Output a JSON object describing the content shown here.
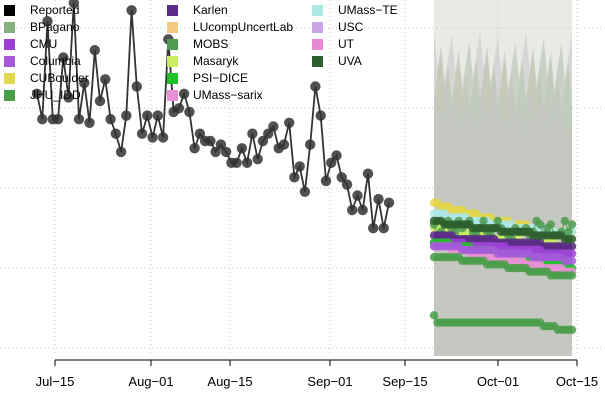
{
  "chart_data": {
    "type": "line",
    "title": "",
    "xlabel": "",
    "ylabel": "",
    "x_ticks": [
      "Jul−15",
      "Aug−01",
      "Aug−15",
      "Sep−01",
      "Sep−15",
      "Oct−01",
      "Oct−15"
    ],
    "grid": true,
    "legend_placement": "top-left",
    "legend": [
      {
        "name": "Reported",
        "color": "#000000"
      },
      {
        "name": "BPagano",
        "color": "#86b07e"
      },
      {
        "name": "CMU",
        "color": "#9c3fd6"
      },
      {
        "name": "Columbia",
        "color": "#a35ad9"
      },
      {
        "name": "CUBoulder",
        "color": "#e3d64a"
      },
      {
        "name": "JHU_IDD",
        "color": "#4a9e4a"
      },
      {
        "name": "Karlen",
        "color": "#5b2a86"
      },
      {
        "name": "LUcompUncertLab",
        "color": "#f2c983"
      },
      {
        "name": "MOBS",
        "color": "#4f9a52"
      },
      {
        "name": "Masaryk",
        "color": "#c9ec62"
      },
      {
        "name": "PSI−DICE",
        "color": "#22c02a"
      },
      {
        "name": "UMass−sarix",
        "color": "#e98fd6"
      },
      {
        "name": "UMass−TE",
        "color": "#aee6e6"
      },
      {
        "name": "USC",
        "color": "#c8a6e6"
      },
      {
        "name": "UT",
        "color": "#e68ad6"
      },
      {
        "name": "UVA",
        "color": "#2e5e2e"
      }
    ],
    "reported_y": [
      0.75,
      0.68,
      0.95,
      0.68,
      0.68,
      0.85,
      0.74,
      1.0,
      0.68,
      0.78,
      0.67,
      0.87,
      0.73,
      0.79,
      0.68,
      0.64,
      0.59,
      0.69,
      0.98,
      0.77,
      0.64,
      0.69,
      0.63,
      0.69,
      0.63,
      0.9,
      0.7,
      0.71,
      0.75,
      0.7,
      0.6,
      0.64,
      0.62,
      0.62,
      0.59,
      0.61,
      0.59,
      0.56,
      0.56,
      0.6,
      0.56,
      0.64,
      0.57,
      0.62,
      0.64,
      0.66,
      0.6,
      0.61,
      0.67,
      0.52,
      0.55,
      0.48,
      0.61,
      0.77,
      0.69,
      0.51,
      0.56,
      0.58,
      0.52,
      0.5,
      0.43,
      0.47,
      0.43,
      0.53,
      0.38,
      0.46,
      0.38,
      0.45
    ],
    "forecast_baseline": [
      0.14,
      0.12,
      0.12,
      0.12,
      0.12,
      0.12,
      0.12,
      0.12,
      0.12,
      0.12,
      0.12,
      0.12,
      0.12,
      0.12,
      0.12,
      0.12,
      0.12,
      0.12,
      0.12,
      0.12,
      0.12,
      0.12,
      0.12,
      0.12,
      0.12,
      0.12,
      0.12,
      0.12,
      0.12,
      0.12,
      0.12,
      0.11,
      0.11,
      0.11,
      0.11,
      0.1,
      0.1,
      0.1,
      0.1,
      0.1
    ],
    "forecast_series": [
      {
        "color": "#e3d64a",
        "values": [
          0.45,
          0.45,
          0.44,
          0.44,
          0.44,
          0.43,
          0.43,
          0.43,
          0.43,
          0.42,
          0.42,
          0.42,
          0.42,
          0.41,
          0.41,
          0.41,
          0.41,
          0.4,
          0.4,
          0.4,
          0.4,
          0.4,
          0.39,
          0.39,
          0.39,
          0.39,
          0.39,
          0.38,
          0.38,
          0.38,
          0.38,
          0.38,
          0.38,
          0.37,
          0.37,
          0.37,
          0.37,
          0.37,
          0.37,
          0.37
        ]
      },
      {
        "color": "#aee6e6",
        "values": [
          0.42,
          0.42,
          0.42,
          0.42,
          0.41,
          0.41,
          0.41,
          0.41,
          0.41,
          0.41,
          0.4,
          0.4,
          0.4,
          0.4,
          0.4,
          0.4,
          0.39,
          0.39,
          0.39,
          0.39,
          0.39,
          0.39,
          0.39,
          0.38,
          0.38,
          0.38,
          0.38,
          0.38,
          0.38,
          0.38,
          0.38,
          0.38,
          0.37,
          0.37,
          0.37,
          0.37,
          0.37,
          0.37,
          0.37,
          0.37
        ]
      },
      {
        "color": "#c9ec62",
        "values": [
          0.38,
          0.38,
          0.38,
          0.38,
          0.37,
          0.37,
          0.37,
          0.37,
          0.37,
          0.37,
          0.36,
          0.36,
          0.36,
          0.36,
          0.36,
          0.36,
          0.36,
          0.35,
          0.35,
          0.35,
          0.35,
          0.35,
          0.35,
          0.35,
          0.35,
          0.34,
          0.34,
          0.34,
          0.34,
          0.34,
          0.34,
          0.34,
          0.34,
          0.34,
          0.34,
          0.33,
          0.33,
          0.33,
          0.33,
          0.33
        ]
      },
      {
        "color": "#4f9a52",
        "values": [
          0.39,
          0.36,
          0.37,
          0.39,
          0.4,
          0.38,
          0.37,
          0.4,
          0.38,
          0.39,
          0.4,
          0.37,
          0.36,
          0.38,
          0.4,
          0.37,
          0.36,
          0.38,
          0.4,
          0.38,
          0.37,
          0.36,
          0.35,
          0.38,
          0.37,
          0.37,
          0.38,
          0.36,
          0.37,
          0.4,
          0.39,
          0.36,
          0.38,
          0.39,
          0.36,
          0.36,
          0.37,
          0.4,
          0.37,
          0.39
        ]
      },
      {
        "color": "#5b2a86",
        "values": [
          0.36,
          0.36,
          0.36,
          0.36,
          0.36,
          0.36,
          0.35,
          0.35,
          0.35,
          0.35,
          0.35,
          0.35,
          0.35,
          0.35,
          0.35,
          0.35,
          0.35,
          0.35,
          0.34,
          0.34,
          0.34,
          0.34,
          0.34,
          0.34,
          0.34,
          0.34,
          0.34,
          0.34,
          0.34,
          0.34,
          0.34,
          0.33,
          0.33,
          0.33,
          0.33,
          0.33,
          0.33,
          0.33,
          0.33,
          0.33
        ]
      },
      {
        "color": "#9c3fd6",
        "values": [
          0.34,
          0.34,
          0.34,
          0.34,
          0.34,
          0.34,
          0.34,
          0.34,
          0.34,
          0.33,
          0.33,
          0.33,
          0.33,
          0.33,
          0.33,
          0.33,
          0.33,
          0.33,
          0.33,
          0.33,
          0.33,
          0.32,
          0.32,
          0.32,
          0.32,
          0.32,
          0.32,
          0.32,
          0.32,
          0.32,
          0.32,
          0.31,
          0.31,
          0.31,
          0.31,
          0.31,
          0.31,
          0.31,
          0.31,
          0.31
        ]
      },
      {
        "color": "#22c02a",
        "values": [
          0.34,
          0.34,
          0.34,
          0.34,
          0.34,
          0.33,
          0.33,
          0.33,
          0.33,
          0.33,
          0.33,
          0.32,
          0.32,
          0.32,
          0.32,
          0.32,
          0.32,
          0.31,
          0.31,
          0.31,
          0.31,
          0.31,
          0.3,
          0.3,
          0.3,
          0.3,
          0.3,
          0.29,
          0.29,
          0.29,
          0.29,
          0.29,
          0.28,
          0.28,
          0.28,
          0.28,
          0.28,
          0.28,
          0.27,
          0.27
        ]
      },
      {
        "color": "#e98fd6",
        "values": [
          0.33,
          0.33,
          0.33,
          0.33,
          0.33,
          0.32,
          0.32,
          0.32,
          0.32,
          0.32,
          0.31,
          0.31,
          0.31,
          0.31,
          0.31,
          0.3,
          0.3,
          0.3,
          0.3,
          0.3,
          0.29,
          0.29,
          0.29,
          0.29,
          0.29,
          0.29,
          0.28,
          0.28,
          0.28,
          0.28,
          0.28,
          0.27,
          0.27,
          0.27,
          0.27,
          0.27,
          0.27,
          0.26,
          0.26,
          0.26
        ]
      },
      {
        "color": "#2e5e2e",
        "values": [
          0.4,
          0.4,
          0.4,
          0.39,
          0.39,
          0.39,
          0.39,
          0.39,
          0.39,
          0.39,
          0.39,
          0.38,
          0.38,
          0.38,
          0.38,
          0.38,
          0.38,
          0.38,
          0.38,
          0.37,
          0.37,
          0.37,
          0.37,
          0.37,
          0.37,
          0.37,
          0.37,
          0.37,
          0.36,
          0.36,
          0.36,
          0.36,
          0.36,
          0.36,
          0.36,
          0.36,
          0.36,
          0.35,
          0.35,
          0.35
        ]
      },
      {
        "color": "#4a9e4a",
        "values": [
          0.3,
          0.3,
          0.3,
          0.3,
          0.3,
          0.3,
          0.3,
          0.3,
          0.29,
          0.29,
          0.29,
          0.29,
          0.29,
          0.29,
          0.29,
          0.28,
          0.28,
          0.28,
          0.28,
          0.28,
          0.28,
          0.27,
          0.27,
          0.27,
          0.27,
          0.27,
          0.27,
          0.26,
          0.26,
          0.26,
          0.26,
          0.26,
          0.26,
          0.25,
          0.25,
          0.25,
          0.25,
          0.25,
          0.25,
          0.25
        ]
      },
      {
        "color": "#a35ad9",
        "values": [
          0.33,
          0.33,
          0.33,
          0.33,
          0.33,
          0.33,
          0.33,
          0.33,
          0.32,
          0.32,
          0.32,
          0.32,
          0.32,
          0.32,
          0.32,
          0.32,
          0.32,
          0.32,
          0.31,
          0.31,
          0.31,
          0.31,
          0.31,
          0.31,
          0.31,
          0.31,
          0.31,
          0.31,
          0.3,
          0.3,
          0.3,
          0.3,
          0.3,
          0.3,
          0.3,
          0.3,
          0.3,
          0.29,
          0.29,
          0.29
        ]
      }
    ]
  }
}
